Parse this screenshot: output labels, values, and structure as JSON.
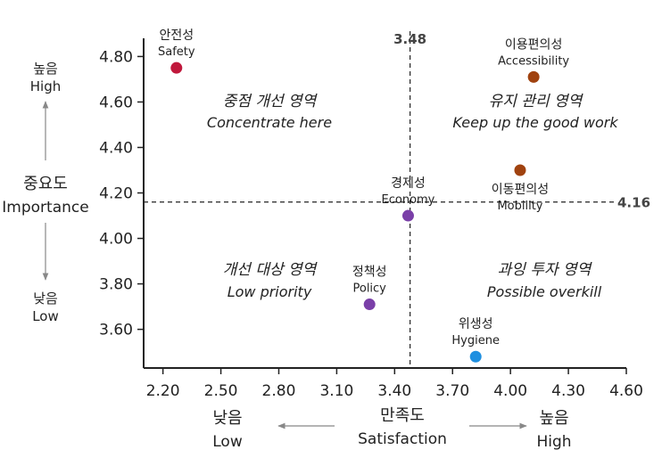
{
  "chart_data": {
    "type": "scatter",
    "xlim": [
      2.1,
      4.6
    ],
    "ylim": [
      3.43,
      4.88
    ],
    "x_ticks": [
      "2.20",
      "2.50",
      "2.80",
      "3.10",
      "3.40",
      "3.70",
      "4.00",
      "4.30",
      "4.60"
    ],
    "y_ticks": [
      "3.60",
      "3.80",
      "4.00",
      "4.20",
      "4.40",
      "4.60",
      "4.80"
    ],
    "x_ref": 3.48,
    "y_ref": 4.16,
    "x_ref_label": "3.48",
    "y_ref_label": "4.16",
    "points": [
      {
        "ko": "안전성",
        "en": "Safety",
        "x": 2.27,
        "y": 4.75,
        "color": "#c0183c"
      },
      {
        "ko": "이용편의성",
        "en": "Accessibility",
        "x": 4.12,
        "y": 4.71,
        "color": "#a0420f"
      },
      {
        "ko": "이동편의성",
        "en": "Mobility",
        "x": 4.05,
        "y": 4.3,
        "color": "#a0420f"
      },
      {
        "ko": "경제성",
        "en": "Economy",
        "x": 3.47,
        "y": 4.1,
        "color": "#7a3fa8"
      },
      {
        "ko": "정책성",
        "en": "Policy",
        "x": 3.27,
        "y": 3.71,
        "color": "#7a3fa8"
      },
      {
        "ko": "위생성",
        "en": "Hygiene",
        "x": 3.82,
        "y": 3.48,
        "color": "#1e8fe0"
      }
    ],
    "quadrants": [
      {
        "ko": "중점 개선 영역",
        "en": "Concentrate here"
      },
      {
        "ko": "유지 관리 영역",
        "en": "Keep up the good work"
      },
      {
        "ko": "개선 대상 영역",
        "en": "Low priority"
      },
      {
        "ko": "과잉 투자 영역",
        "en": "Possible overkill"
      }
    ],
    "xlabel_ko": "만족도",
    "xlabel_en": "Satisfaction",
    "x_low_ko": "낮음",
    "x_low_en": "Low",
    "x_high_ko": "높음",
    "x_high_en": "High",
    "ylabel_ko": "중요도",
    "ylabel_en": "Importance",
    "y_high_ko": "높음",
    "y_high_en": "High",
    "y_low_ko": "낮음",
    "y_low_en": "Low"
  }
}
